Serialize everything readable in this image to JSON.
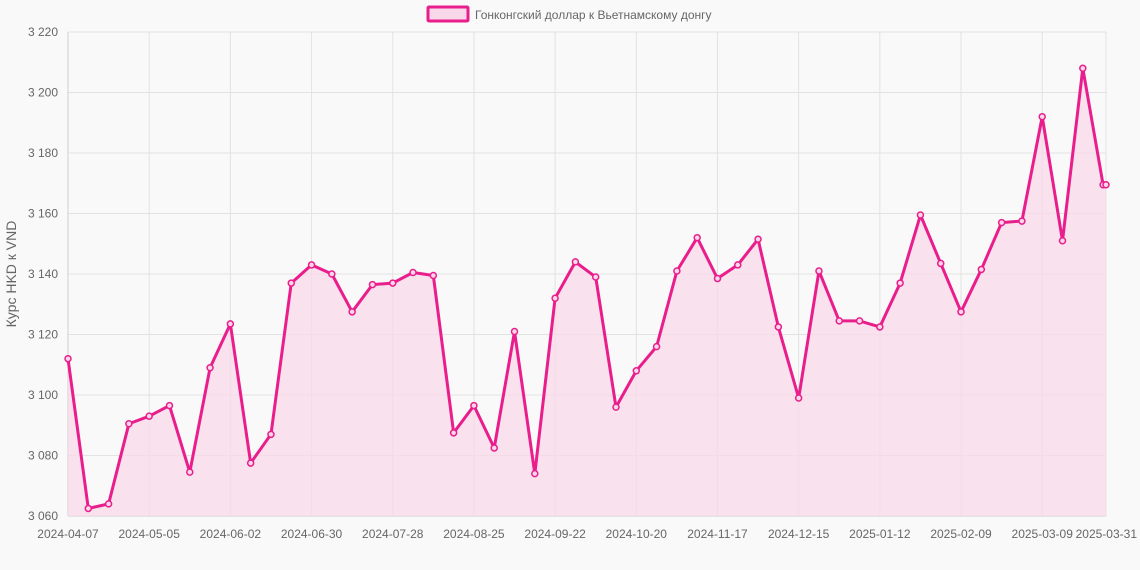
{
  "chart_data": {
    "type": "area",
    "title": "",
    "xlabel": "",
    "ylabel": "Курс HKD к VND",
    "ylim": [
      3060,
      3220
    ],
    "yticks": [
      3060,
      3080,
      3100,
      3120,
      3140,
      3160,
      3180,
      3200,
      3220
    ],
    "ytick_labels": [
      "3 060",
      "3 080",
      "3 100",
      "3 120",
      "3 140",
      "3 160",
      "3 180",
      "3 200",
      "3 220"
    ],
    "xtick_labels": [
      "2024-04-07",
      "2024-05-05",
      "2024-06-02",
      "2024-06-30",
      "2024-07-28",
      "2024-08-25",
      "2024-09-22",
      "2024-10-20",
      "2024-11-17",
      "2024-12-15",
      "2025-01-12",
      "2025-02-09",
      "2025-03-09",
      "2025-03-31"
    ],
    "grid": true,
    "legend_position": "top-center",
    "colors": {
      "line": "#e91e8c",
      "fill": "#f8d8e8",
      "grid": "#e2e2e2"
    },
    "series": [
      {
        "name": "Гонконгский доллар к Вьетнамскому донгу",
        "x": [
          "2024-04-07",
          "2024-04-14",
          "2024-04-21",
          "2024-04-28",
          "2024-05-05",
          "2024-05-12",
          "2024-05-19",
          "2024-05-26",
          "2024-06-02",
          "2024-06-09",
          "2024-06-16",
          "2024-06-23",
          "2024-06-30",
          "2024-07-07",
          "2024-07-14",
          "2024-07-21",
          "2024-07-28",
          "2024-08-04",
          "2024-08-11",
          "2024-08-18",
          "2024-08-25",
          "2024-09-01",
          "2024-09-08",
          "2024-09-15",
          "2024-09-22",
          "2024-09-29",
          "2024-10-06",
          "2024-10-13",
          "2024-10-20",
          "2024-10-27",
          "2024-11-03",
          "2024-11-10",
          "2024-11-17",
          "2024-11-24",
          "2024-12-01",
          "2024-12-08",
          "2024-12-15",
          "2024-12-22",
          "2024-12-29",
          "2025-01-05",
          "2025-01-12",
          "2025-01-19",
          "2025-01-26",
          "2025-02-02",
          "2025-02-09",
          "2025-02-16",
          "2025-02-23",
          "2025-03-02",
          "2025-03-09",
          "2025-03-16",
          "2025-03-23",
          "2025-03-30",
          "2025-03-31"
        ],
        "values": [
          3112,
          3062.5,
          3064,
          3090.5,
          3093,
          3096.5,
          3074.5,
          3109,
          3123.5,
          3077.5,
          3087,
          3137,
          3143,
          3140,
          3127.5,
          3136.5,
          3137,
          3140.5,
          3139.5,
          3087.5,
          3096.5,
          3082.5,
          3121,
          3074,
          3132,
          3144,
          3139,
          3096,
          3108,
          3116,
          3141,
          3152,
          3138.5,
          3143,
          3151.5,
          3122.5,
          3099,
          3141,
          3124.5,
          3124.5,
          3122.5,
          3137,
          3159.5,
          3143.5,
          3127.5,
          3141.5,
          3157,
          3157.5,
          3192,
          3151,
          3208,
          3169.5,
          3169.5
        ]
      }
    ]
  }
}
